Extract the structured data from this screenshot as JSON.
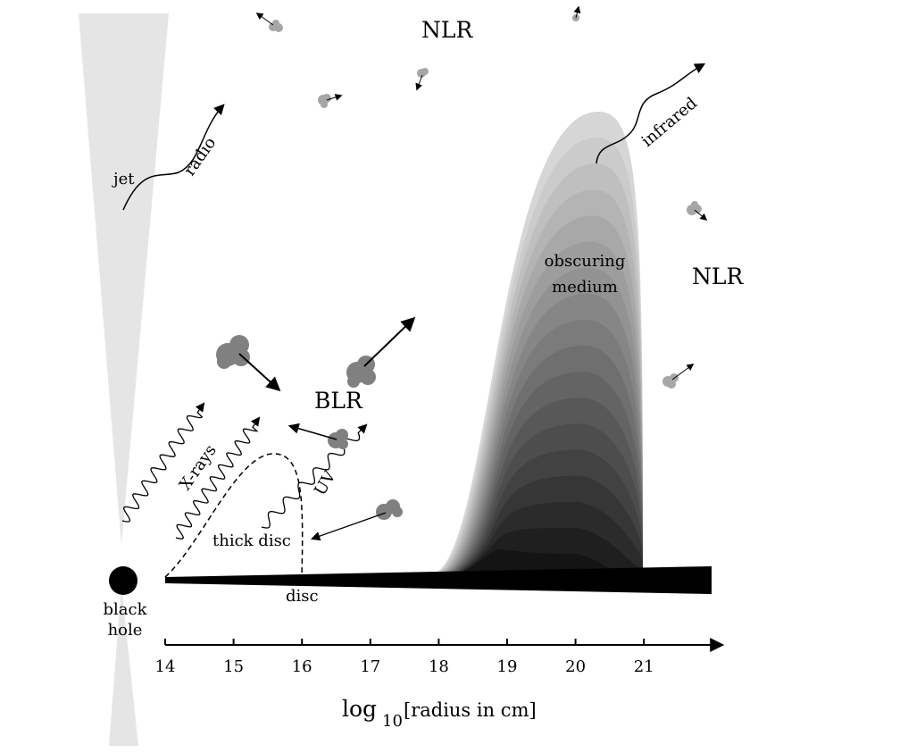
{
  "labels": {
    "nlr_top": "NLR",
    "nlr_right": "NLR",
    "blr": "BLR",
    "jet": "jet",
    "radio": "radio",
    "infrared": "infrared",
    "obscuring_line1": "obscuring",
    "obscuring_line2": "medium",
    "xrays": "X-rays",
    "uv": "UV",
    "thick_disc": "thick disc",
    "disc": "disc",
    "black_hole_line1": "black",
    "black_hole_line2": "hole"
  },
  "axis": {
    "ticks": [
      "14",
      "15",
      "16",
      "17",
      "18",
      "19",
      "20",
      "21"
    ],
    "label_log": "log",
    "label_sub": "10",
    "label_rest": "[radius in cm]"
  },
  "colors": {
    "jet": "#e5e5e5",
    "cloud": "#808080",
    "small_cloud": "#a6a6a6",
    "disc": "#000000",
    "obscuring_outer": "#d6d6d6",
    "obscuring_inner": "#141414"
  }
}
